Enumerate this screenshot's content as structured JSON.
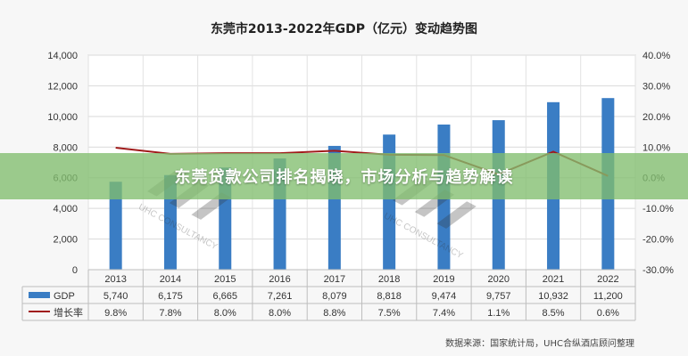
{
  "title": "东莞市2013-2022年GDP（亿元）变动趋势图",
  "banner": "东莞贷款公司排名揭晓，市场分析与趋势解读",
  "source": "数据来源：国家统计局，UHC合纵酒店顾问整理",
  "watermark": "UHC CONSULTANCY",
  "chart_data": {
    "type": "bar",
    "categories": [
      "2013",
      "2014",
      "2015",
      "2016",
      "2017",
      "2018",
      "2019",
      "2020",
      "2021",
      "2022"
    ],
    "series": [
      {
        "name": "GDP",
        "type": "bar",
        "axis": "left",
        "color": "#3a7dc4",
        "values": [
          5740,
          6175,
          6665,
          7261,
          8079,
          8818,
          9474,
          9757,
          10932,
          11200
        ]
      },
      {
        "name": "增长率",
        "type": "line",
        "axis": "right",
        "color": "#a01b1b",
        "values": [
          9.8,
          7.8,
          8.0,
          8.0,
          8.8,
          7.5,
          7.4,
          1.1,
          8.5,
          0.6
        ]
      }
    ],
    "ylim_left": [
      0,
      14000
    ],
    "ylim_right": [
      -30,
      40
    ],
    "yticks_left": [
      "0",
      "2,000",
      "4,000",
      "6,000",
      "8,000",
      "10,000",
      "12,000",
      "14,000"
    ],
    "yticks_right": [
      "-30.0%",
      "-20.0%",
      "-10.0%",
      "0.0%",
      "10.0%",
      "20.0%",
      "30.0%",
      "40.0%"
    ],
    "grid": true,
    "legend": "data-table"
  },
  "table": {
    "rows": [
      {
        "label": "GDP",
        "cells": [
          "5,740",
          "6,175",
          "6,665",
          "7,261",
          "8,079",
          "8,818",
          "9,474",
          "9,757",
          "10,932",
          "11,200"
        ]
      },
      {
        "label": "增长率",
        "cells": [
          "9.8%",
          "7.8%",
          "8.0%",
          "8.0%",
          "8.8%",
          "7.5%",
          "7.4%",
          "1.1%",
          "8.5%",
          "0.6%"
        ]
      }
    ]
  }
}
